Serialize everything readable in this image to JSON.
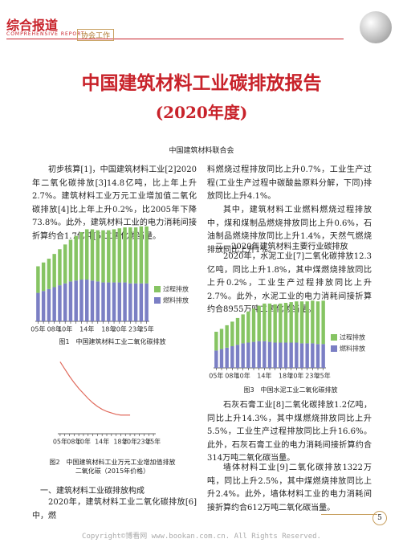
{
  "header": {
    "section": "综合报道",
    "section_en": "COMPREHENSIVE REPORT",
    "column": "协会工作"
  },
  "title": "中国建筑材料工业碳排放报告",
  "subtitle": "(2020年度)",
  "author": "中国建筑材料联合会",
  "left_paragraphs": [
    "初步核算[1]，中国建筑材料工业[2]2020年二氧化碳排放[3]14.8亿吨，比上年上升2.7%。建筑材料工业万元工业增加值二氧化碳排放[4]比上年上升0.2%，比2005年下降73.8%。此外，建筑材料工业的电力消耗间接折算约合1.7亿吨[5]二氧化碳当量。"
  ],
  "section1_heading": "一、建筑材料工业碳排放构成",
  "section1_start": "2020年，建筑材料工业二氧化碳排放[6]中，燃",
  "right_paragraphs_top": [
    "料燃烧过程排放同比上升0.7%，工业生产过程(工业生产过程中碳酸盐原料分解，下同)排放同比上升4.1%。",
    "其中，建筑材料工业燃料燃烧过程排放中，煤和煤制品燃烧排放同比上升0.6%，石油制品燃烧排放同比上升1.4%，天然气燃烧排放同比上升1%。"
  ],
  "section2_heading": "二、2020年建筑材料主要行业碳排放",
  "section2_paragraph": "2020年，水泥工业[7]二氧化碳排放12.3亿吨，同比上升1.8%，其中煤燃烧排放同比上升0.2%，工业生产过程排放同比上升2.7%。此外，水泥工业的电力消耗间接折算约合8955万吨二氧化碳当量。",
  "right_paragraphs_bottom": [
    "石灰石膏工业[8]二氧化碳排放1.2亿吨，同比上升14.3%，其中煤燃烧排放同比上升5.5%，工业生产过程排放同比上升16.6%。此外，石灰石膏工业的电力消耗间接折算约合314万吨二氧化碳当量。",
    "墙体材料工业[9]二氧化碳排放1322万吨，同比上升2.5%，其中煤燃烧排放同比上升2.4%。此外，墙体材料工业的电力消耗间接折算约合612万吨二氧化碳当量。"
  ],
  "page_number": "5",
  "footer": "Copyright©博看网 www.bookan.com.cn. All Rights Reserved.",
  "chart_data": [
    {
      "type": "bar",
      "stacked": true,
      "title": "图1　中国建筑材料工业二氧化碳排放",
      "categories": [
        "05年",
        null,
        null,
        "08年",
        null,
        "10年",
        null,
        null,
        null,
        "14年",
        null,
        null,
        null,
        "18年",
        null,
        "20年",
        null,
        null,
        "23年",
        null,
        "25年"
      ],
      "series": [
        {
          "name": "燃料排放",
          "color": "#7b7fc4",
          "values": [
            30,
            32,
            34,
            36,
            38,
            40,
            42,
            43,
            44,
            44,
            43,
            42,
            41,
            41,
            41,
            41,
            41,
            40,
            40,
            40,
            40
          ]
        },
        {
          "name": "过程排放",
          "color": "#86c463",
          "values": [
            28,
            30,
            32,
            35,
            38,
            41,
            44,
            47,
            50,
            53,
            54,
            54,
            55,
            55,
            56,
            57,
            58,
            59,
            59,
            60,
            60
          ]
        }
      ],
      "ylim": [
        0,
        105
      ],
      "legend": "right"
    },
    {
      "type": "line",
      "title": "图2　中国建筑材料工业万元工业增加值排放二氧化碳（2015年价格）",
      "categories": [
        "05年",
        null,
        null,
        "08年",
        null,
        "10年",
        null,
        null,
        null,
        "14年",
        null,
        null,
        null,
        "18年",
        null,
        "20年",
        null,
        null,
        "23年",
        null,
        "25年"
      ],
      "series": [
        {
          "name": null,
          "color": "#e06a5c",
          "values": [
            100,
            90,
            80,
            71,
            63,
            56,
            49,
            43,
            38,
            34,
            31,
            29,
            27,
            26,
            26,
            26,
            null,
            null,
            null,
            null,
            null
          ]
        }
      ],
      "ylim": [
        0,
        105
      ]
    },
    {
      "type": "bar",
      "stacked": true,
      "title": "图3　中国水泥工业二氧化碳排放",
      "categories": [
        "05年",
        null,
        null,
        "08年",
        null,
        "10年",
        null,
        null,
        null,
        "14年",
        null,
        null,
        null,
        "18年",
        null,
        "20年",
        null,
        null,
        "23年",
        null,
        "25年"
      ],
      "series": [
        {
          "name": "燃料排放",
          "color": "#7b7fc4",
          "values": [
            24,
            26,
            28,
            30,
            32,
            34,
            35,
            36,
            37,
            37,
            36,
            35,
            35,
            35,
            35,
            35,
            34,
            34,
            34,
            33,
            33
          ]
        },
        {
          "name": "过程排放",
          "color": "#86c463",
          "values": [
            26,
            28,
            31,
            34,
            37,
            40,
            43,
            46,
            49,
            52,
            53,
            53,
            54,
            55,
            56,
            57,
            58,
            58,
            59,
            59,
            60
          ]
        }
      ],
      "ylim": [
        0,
        100
      ],
      "legend": "right"
    }
  ]
}
